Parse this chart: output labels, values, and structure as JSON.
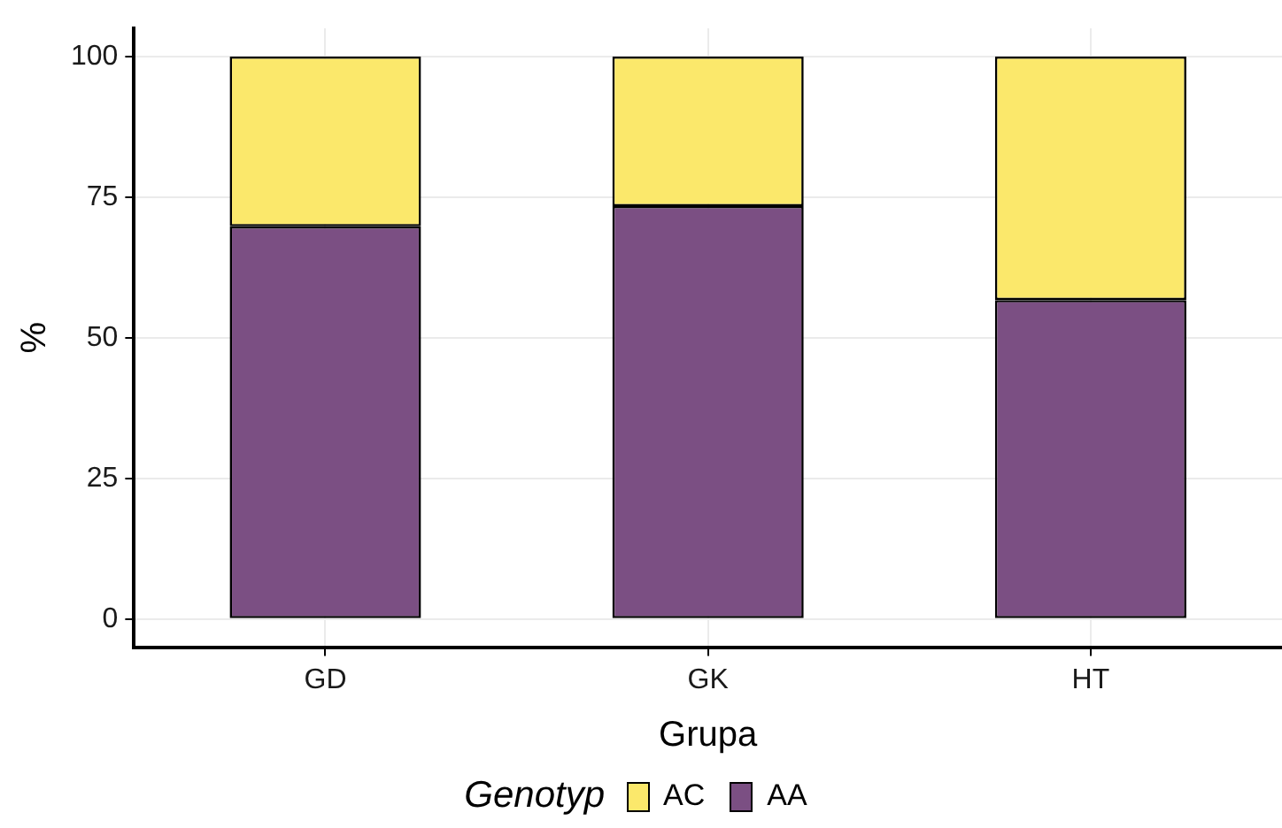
{
  "chart_data": {
    "type": "bar",
    "stacked": true,
    "xlabel": "Grupa",
    "ylabel": "%",
    "legend_title": "Genotyp",
    "legend": "bottom",
    "grid": true,
    "categories": [
      "GD",
      "GK",
      "HT"
    ],
    "series": [
      {
        "name": "AA",
        "color": "#7b4f83",
        "values": [
          69.8,
          73.4,
          56.7
        ]
      },
      {
        "name": "AC",
        "color": "#fbe86b",
        "values": [
          30.2,
          26.6,
          43.3
        ]
      }
    ],
    "ylim": [
      -5,
      105
    ],
    "yticks": [
      0,
      25,
      50,
      75,
      100
    ]
  }
}
